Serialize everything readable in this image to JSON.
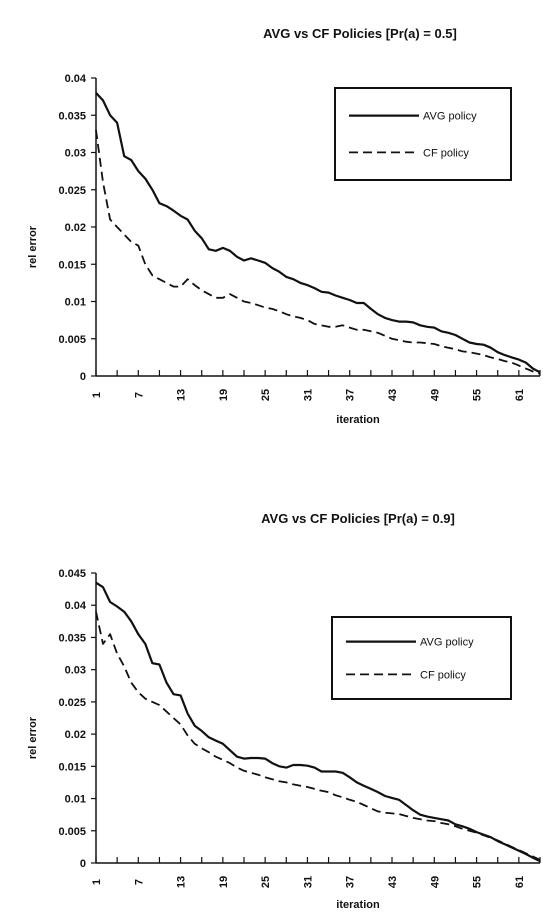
{
  "chart_data": [
    {
      "type": "line",
      "title": "AVG vs CF Policies [Pr(a) = 0.5]",
      "xlabel": "iteration",
      "ylabel": "rel   error",
      "xlim": [
        1,
        64
      ],
      "ylim": [
        0,
        0.04
      ],
      "y_ticks": [
        "0",
        "0.005",
        "0.01",
        "0.015",
        "0.02",
        "0.025",
        "0.03",
        "0.035",
        "0.04"
      ],
      "x_ticks": [
        "1",
        "7",
        "13",
        "19",
        "25",
        "31",
        "37",
        "43",
        "49",
        "55",
        "61"
      ],
      "legend_position": "top-right",
      "grid": false,
      "series": [
        {
          "name": "AVG policy",
          "style": "solid",
          "x": [
            1,
            2,
            3,
            4,
            5,
            6,
            7,
            8,
            9,
            10,
            11,
            12,
            13,
            14,
            15,
            16,
            17,
            18,
            19,
            20,
            21,
            22,
            23,
            24,
            25,
            26,
            27,
            28,
            29,
            30,
            31,
            32,
            33,
            34,
            35,
            36,
            37,
            38,
            39,
            40,
            41,
            42,
            43,
            44,
            45,
            46,
            47,
            48,
            49,
            50,
            51,
            52,
            53,
            54,
            55,
            56,
            57,
            58,
            59,
            60,
            61,
            62,
            63,
            64
          ],
          "values": [
            0.038,
            0.037,
            0.035,
            0.034,
            0.0295,
            0.029,
            0.0275,
            0.0265,
            0.025,
            0.0232,
            0.0228,
            0.0222,
            0.0215,
            0.021,
            0.0195,
            0.0185,
            0.017,
            0.0168,
            0.0172,
            0.0168,
            0.016,
            0.0155,
            0.0158,
            0.0155,
            0.0152,
            0.0145,
            0.014,
            0.0133,
            0.013,
            0.0125,
            0.0122,
            0.0118,
            0.0113,
            0.0112,
            0.0108,
            0.0105,
            0.0102,
            0.0098,
            0.0098,
            0.009,
            0.0083,
            0.0078,
            0.0075,
            0.0073,
            0.0073,
            0.0072,
            0.0068,
            0.0066,
            0.0065,
            0.006,
            0.0058,
            0.0055,
            0.005,
            0.0045,
            0.0043,
            0.0042,
            0.0038,
            0.0032,
            0.0028,
            0.0025,
            0.0022,
            0.0018,
            0.001,
            0.0005
          ]
        },
        {
          "name": "CF policy",
          "style": "dashed",
          "x": [
            1,
            2,
            3,
            4,
            5,
            6,
            7,
            8,
            9,
            10,
            11,
            12,
            13,
            14,
            15,
            16,
            17,
            18,
            19,
            20,
            21,
            22,
            23,
            24,
            25,
            26,
            27,
            28,
            29,
            30,
            31,
            32,
            33,
            34,
            35,
            36,
            37,
            38,
            39,
            40,
            41,
            42,
            43,
            44,
            45,
            46,
            47,
            48,
            49,
            50,
            51,
            52,
            53,
            54,
            55,
            56,
            57,
            58,
            59,
            60,
            61,
            62,
            63,
            64
          ],
          "values": [
            0.033,
            0.026,
            0.021,
            0.02,
            0.019,
            0.018,
            0.0175,
            0.015,
            0.0135,
            0.013,
            0.0125,
            0.012,
            0.012,
            0.013,
            0.0122,
            0.0115,
            0.011,
            0.0105,
            0.0105,
            0.011,
            0.0105,
            0.01,
            0.0098,
            0.0095,
            0.0092,
            0.009,
            0.0087,
            0.0083,
            0.008,
            0.0078,
            0.0075,
            0.007,
            0.0068,
            0.0066,
            0.0066,
            0.0068,
            0.0065,
            0.0062,
            0.0062,
            0.006,
            0.0058,
            0.0054,
            0.005,
            0.0048,
            0.0046,
            0.0045,
            0.0045,
            0.0044,
            0.0043,
            0.004,
            0.0038,
            0.0036,
            0.0033,
            0.0032,
            0.003,
            0.0028,
            0.0025,
            0.0023,
            0.002,
            0.0018,
            0.0014,
            0.001,
            0.0006,
            0.0003
          ]
        }
      ]
    },
    {
      "type": "line",
      "title": "AVG vs CF Policies [Pr(a) = 0.9]",
      "xlabel": "iteration",
      "ylabel": "rel   error",
      "xlim": [
        1,
        64
      ],
      "ylim": [
        0,
        0.045
      ],
      "y_ticks": [
        "0",
        "0.005",
        "0.01",
        "0.015",
        "0.02",
        "0.025",
        "0.03",
        "0.035",
        "0.04",
        "0.045"
      ],
      "x_ticks": [
        "1",
        "7",
        "13",
        "19",
        "25",
        "31",
        "37",
        "43",
        "49",
        "55",
        "61"
      ],
      "legend_position": "top-right",
      "grid": false,
      "series": [
        {
          "name": "AVG policy",
          "style": "solid",
          "x": [
            1,
            2,
            3,
            4,
            5,
            6,
            7,
            8,
            9,
            10,
            11,
            12,
            13,
            14,
            15,
            16,
            17,
            18,
            19,
            20,
            21,
            22,
            23,
            24,
            25,
            26,
            27,
            28,
            29,
            30,
            31,
            32,
            33,
            34,
            35,
            36,
            37,
            38,
            39,
            40,
            41,
            42,
            43,
            44,
            45,
            46,
            47,
            48,
            49,
            50,
            51,
            52,
            53,
            54,
            55,
            56,
            57,
            58,
            59,
            60,
            61,
            62,
            63,
            64
          ],
          "values": [
            0.0435,
            0.0428,
            0.0405,
            0.0398,
            0.039,
            0.0375,
            0.0355,
            0.034,
            0.031,
            0.0308,
            0.028,
            0.0262,
            0.026,
            0.0232,
            0.0213,
            0.0205,
            0.0195,
            0.019,
            0.0185,
            0.0175,
            0.0165,
            0.0162,
            0.0163,
            0.0163,
            0.0162,
            0.0155,
            0.015,
            0.0148,
            0.0152,
            0.0152,
            0.0151,
            0.0148,
            0.0142,
            0.0142,
            0.0142,
            0.014,
            0.0133,
            0.0125,
            0.012,
            0.0115,
            0.011,
            0.0104,
            0.0101,
            0.0098,
            0.009,
            0.0082,
            0.0075,
            0.0072,
            0.007,
            0.0068,
            0.0066,
            0.006,
            0.0057,
            0.0053,
            0.0048,
            0.0044,
            0.004,
            0.0034,
            0.0029,
            0.0024,
            0.0019,
            0.0014,
            0.0008,
            0.0003
          ]
        },
        {
          "name": "CF policy",
          "style": "dashed",
          "x": [
            1,
            2,
            3,
            4,
            5,
            6,
            7,
            8,
            9,
            10,
            11,
            12,
            13,
            14,
            15,
            16,
            17,
            18,
            19,
            20,
            21,
            22,
            23,
            24,
            25,
            26,
            27,
            28,
            29,
            30,
            31,
            32,
            33,
            34,
            35,
            36,
            37,
            38,
            39,
            40,
            41,
            42,
            43,
            44,
            45,
            46,
            47,
            48,
            49,
            50,
            51,
            52,
            53,
            54,
            55,
            56,
            57,
            58,
            59,
            60,
            61,
            62,
            63,
            64
          ],
          "values": [
            0.039,
            0.034,
            0.0355,
            0.0325,
            0.0305,
            0.028,
            0.0265,
            0.0255,
            0.025,
            0.0245,
            0.0235,
            0.0225,
            0.0215,
            0.0198,
            0.0185,
            0.0178,
            0.0172,
            0.0165,
            0.016,
            0.0155,
            0.0148,
            0.0143,
            0.014,
            0.0137,
            0.0133,
            0.013,
            0.0127,
            0.0125,
            0.0122,
            0.012,
            0.0118,
            0.0115,
            0.0112,
            0.011,
            0.0105,
            0.0102,
            0.0098,
            0.0095,
            0.009,
            0.0085,
            0.008,
            0.0078,
            0.0077,
            0.0076,
            0.0073,
            0.007,
            0.0068,
            0.0066,
            0.0065,
            0.0062,
            0.006,
            0.0057,
            0.0053,
            0.005,
            0.0047,
            0.0043,
            0.0039,
            0.0035,
            0.003,
            0.0025,
            0.002,
            0.0015,
            0.001,
            0.0005
          ]
        }
      ]
    }
  ]
}
